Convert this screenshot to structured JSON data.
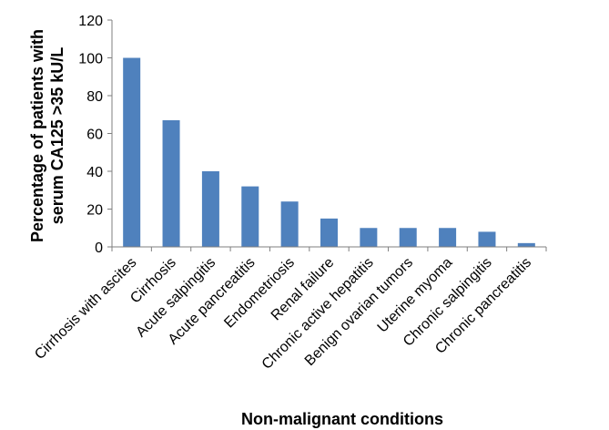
{
  "chart_data": {
    "type": "bar",
    "xlabel": "Non-malignant conditions",
    "ylabel_lines": [
      "Percentage of patients with",
      "serum CA125 >35 kU/L"
    ],
    "ylim": [
      0,
      120
    ],
    "yticks": [
      0,
      20,
      40,
      60,
      80,
      100,
      120
    ],
    "grid": false,
    "bar_color": "#4F81BD",
    "categories": [
      "Cirrhosis with ascites",
      "Cirrhosis",
      "Acute salpingitis",
      "Acute pancreatitis",
      "Endometriosis",
      "Renal failure",
      "Chronic active hepatitis",
      "Benign ovarian tumors",
      "Uterine myoma",
      "Chronic salpingitis",
      "Chronic pancreatitis"
    ],
    "values": [
      100,
      67,
      40,
      32,
      24,
      15,
      10,
      10,
      10,
      8,
      2
    ]
  }
}
